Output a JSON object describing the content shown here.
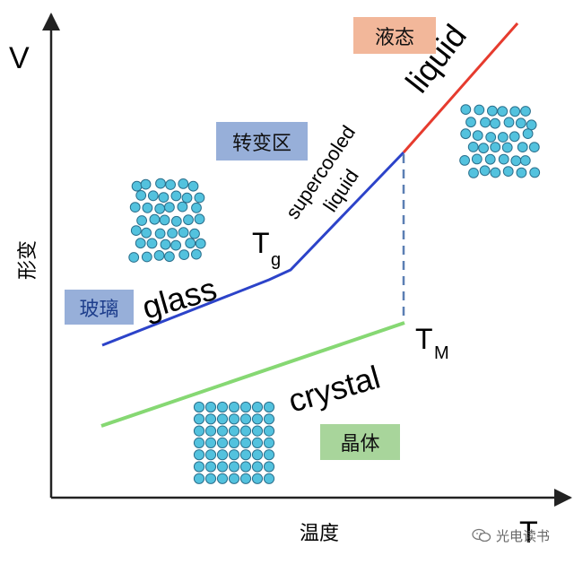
{
  "axes": {
    "y_label": "V",
    "y_caption": "形变",
    "x_label": "T",
    "x_caption": "温度"
  },
  "curves": {
    "liquid": "liquid",
    "supercooled_line1": "supercooled",
    "supercooled_line2": "liquid",
    "glass": "glass",
    "crystal": "crystal"
  },
  "points": {
    "tg_main": "T",
    "tg_sub": "g",
    "tm_main": "T",
    "tm_sub": "M"
  },
  "tags": {
    "liquid": "液态",
    "transition": "转变区",
    "glass": "玻璃",
    "crystal": "晶体"
  },
  "watermark": {
    "text": "光电读书"
  },
  "colors": {
    "liquid_line": "#e63b2e",
    "glass_line": "#2c43c9",
    "crystal_line": "#86d873",
    "particles": "#53c2de",
    "particle_outline": "#2a6f8c"
  }
}
